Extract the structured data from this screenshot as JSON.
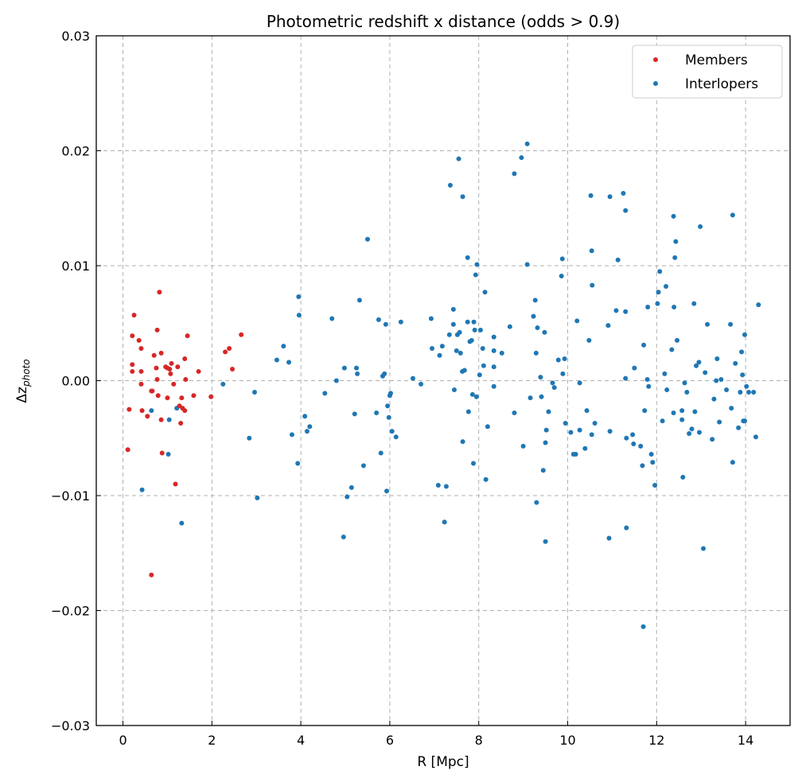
{
  "chart_data": {
    "type": "scatter",
    "title": "Photometric redshift x distance (odds > 0.9)",
    "xlabel": "R [Mpc]",
    "ylabel_main": "Δz",
    "ylabel_sub": "photo",
    "xlim": [
      -0.6,
      15.0
    ],
    "ylim": [
      -0.03,
      0.03
    ],
    "y_unit_scale": 0.001,
    "xticks": [
      0,
      2,
      4,
      6,
      8,
      10,
      12,
      14
    ],
    "xtick_labels": [
      "0",
      "2",
      "4",
      "6",
      "8",
      "10",
      "12",
      "14"
    ],
    "yticks": [
      -0.03,
      -0.02,
      -0.01,
      0,
      0.01,
      0.02,
      0.03
    ],
    "ytick_labels": [
      "−0.03",
      "−0.02",
      "−0.01",
      "0.00",
      "0.01",
      "0.02",
      "0.03"
    ],
    "grid": true,
    "legend_position": "top-right",
    "series": [
      {
        "name": "Members",
        "color": "#d62728",
        "points_y_in_1e-3": [
          [
            0.25,
            5.7
          ],
          [
            0.21,
            3.9
          ],
          [
            0.14,
            -2.5
          ],
          [
            0.11,
            -6.0
          ],
          [
            0.21,
            1.4
          ],
          [
            0.21,
            0.8
          ],
          [
            0.36,
            3.5
          ],
          [
            0.41,
            2.8
          ],
          [
            0.41,
            0.8
          ],
          [
            0.41,
            -0.3
          ],
          [
            0.43,
            -2.6
          ],
          [
            0.55,
            -3.1
          ],
          [
            0.64,
            -0.9
          ],
          [
            0.66,
            -0.9
          ],
          [
            0.7,
            2.2
          ],
          [
            0.75,
            1.1
          ],
          [
            0.77,
            0.1
          ],
          [
            0.77,
            4.4
          ],
          [
            0.82,
            7.7
          ],
          [
            0.86,
            2.4
          ],
          [
            0.88,
            -6.3
          ],
          [
            0.86,
            -3.4
          ],
          [
            0.96,
            1.2
          ],
          [
            1.0,
            -1.5
          ],
          [
            1.05,
            1.0
          ],
          [
            1.07,
            0.6
          ],
          [
            1.09,
            1.5
          ],
          [
            1.14,
            -0.3
          ],
          [
            1.18,
            -9.0
          ],
          [
            1.23,
            1.2
          ],
          [
            1.27,
            -2.2
          ],
          [
            1.3,
            -3.7
          ],
          [
            1.32,
            -1.5
          ],
          [
            1.34,
            -2.4
          ],
          [
            1.39,
            -2.6
          ],
          [
            1.41,
            0.1
          ],
          [
            1.39,
            1.9
          ],
          [
            1.45,
            3.9
          ],
          [
            1.59,
            -1.3
          ],
          [
            1.7,
            0.8
          ],
          [
            1.98,
            -1.4
          ],
          [
            2.3,
            2.5
          ],
          [
            2.39,
            2.8
          ],
          [
            2.46,
            1.0
          ],
          [
            2.66,
            4.0
          ],
          [
            0.64,
            -16.9
          ],
          [
            0.79,
            -1.3
          ],
          [
            1.0,
            1.1
          ]
        ]
      },
      {
        "name": "Interlopers",
        "color": "#1f77b4",
        "points_y_in_1e-3": [
          [
            0.64,
            -2.6
          ],
          [
            0.43,
            -9.5
          ],
          [
            1.02,
            -6.4
          ],
          [
            1.04,
            -3.4
          ],
          [
            1.21,
            -2.4
          ],
          [
            1.32,
            -12.4
          ],
          [
            2.25,
            -0.3
          ],
          [
            2.96,
            -1.0
          ],
          [
            2.84,
            -5.0
          ],
          [
            3.02,
            -10.2
          ],
          [
            3.46,
            1.8
          ],
          [
            3.61,
            3.0
          ],
          [
            3.73,
            1.6
          ],
          [
            3.8,
            -4.7
          ],
          [
            3.95,
            7.3
          ],
          [
            3.96,
            5.7
          ],
          [
            3.93,
            -7.2
          ],
          [
            4.09,
            -3.1
          ],
          [
            4.14,
            -4.4
          ],
          [
            4.2,
            -4.0
          ],
          [
            4.54,
            -1.1
          ],
          [
            4.7,
            5.4
          ],
          [
            4.8,
            0.0
          ],
          [
            4.98,
            1.1
          ],
          [
            4.96,
            -13.6
          ],
          [
            5.04,
            -10.1
          ],
          [
            5.14,
            -9.3
          ],
          [
            5.21,
            -2.9
          ],
          [
            5.25,
            1.1
          ],
          [
            5.27,
            0.6
          ],
          [
            5.32,
            7.0
          ],
          [
            5.41,
            -7.4
          ],
          [
            5.5,
            12.3
          ],
          [
            5.7,
            -2.8
          ],
          [
            5.75,
            5.3
          ],
          [
            5.8,
            -6.3
          ],
          [
            5.84,
            0.4
          ],
          [
            5.88,
            0.6
          ],
          [
            5.91,
            4.9
          ],
          [
            5.93,
            -9.6
          ],
          [
            5.95,
            -2.2
          ],
          [
            5.98,
            -3.2
          ],
          [
            6.0,
            -1.3
          ],
          [
            6.02,
            -1.1
          ],
          [
            6.05,
            -4.4
          ],
          [
            6.14,
            -4.9
          ],
          [
            6.25,
            5.1
          ],
          [
            6.52,
            0.2
          ],
          [
            6.7,
            -0.3
          ],
          [
            6.93,
            5.4
          ],
          [
            6.95,
            2.8
          ],
          [
            7.12,
            2.2
          ],
          [
            7.09,
            -9.1
          ],
          [
            7.18,
            3.0
          ],
          [
            7.23,
            -12.3
          ],
          [
            7.27,
            -9.2
          ],
          [
            7.36,
            17.0
          ],
          [
            7.34,
            4.0
          ],
          [
            7.43,
            6.2
          ],
          [
            7.43,
            4.9
          ],
          [
            7.45,
            -0.8
          ],
          [
            7.5,
            2.6
          ],
          [
            7.52,
            4.0
          ],
          [
            7.55,
            19.3
          ],
          [
            7.57,
            4.2
          ],
          [
            7.59,
            2.4
          ],
          [
            7.63,
            0.8
          ],
          [
            7.64,
            -5.3
          ],
          [
            7.64,
            16.0
          ],
          [
            7.68,
            0.9
          ],
          [
            7.75,
            10.7
          ],
          [
            7.77,
            -2.7
          ],
          [
            7.75,
            5.1
          ],
          [
            7.8,
            3.4
          ],
          [
            7.84,
            3.5
          ],
          [
            7.86,
            -1.2
          ],
          [
            7.88,
            -7.2
          ],
          [
            7.89,
            5.1
          ],
          [
            7.91,
            4.4
          ],
          [
            7.93,
            9.2
          ],
          [
            7.95,
            -1.4
          ],
          [
            7.96,
            10.1
          ],
          [
            8.02,
            0.5
          ],
          [
            8.04,
            4.4
          ],
          [
            8.09,
            2.8
          ],
          [
            8.11,
            1.3
          ],
          [
            8.14,
            7.7
          ],
          [
            8.16,
            -8.6
          ],
          [
            8.2,
            -4.0
          ],
          [
            8.34,
            2.6
          ],
          [
            8.34,
            3.8
          ],
          [
            8.34,
            1.2
          ],
          [
            8.34,
            -0.5
          ],
          [
            8.52,
            2.4
          ],
          [
            8.7,
            4.7
          ],
          [
            8.8,
            -2.8
          ],
          [
            8.8,
            18.0
          ],
          [
            8.96,
            19.4
          ],
          [
            9.0,
            -5.7
          ],
          [
            9.09,
            10.1
          ],
          [
            9.09,
            20.6
          ],
          [
            9.16,
            -1.5
          ],
          [
            9.23,
            5.6
          ],
          [
            9.27,
            7.0
          ],
          [
            9.29,
            2.4
          ],
          [
            9.32,
            4.6
          ],
          [
            9.3,
            -10.6
          ],
          [
            9.39,
            0.3
          ],
          [
            9.41,
            -1.4
          ],
          [
            9.45,
            -7.8
          ],
          [
            9.48,
            4.2
          ],
          [
            9.52,
            -4.3
          ],
          [
            9.5,
            -14.0
          ],
          [
            9.5,
            -5.4
          ],
          [
            9.57,
            -2.7
          ],
          [
            9.66,
            -0.2
          ],
          [
            9.7,
            -0.6
          ],
          [
            9.79,
            1.8
          ],
          [
            9.86,
            9.1
          ],
          [
            9.88,
            10.6
          ],
          [
            9.89,
            0.6
          ],
          [
            9.93,
            1.9
          ],
          [
            9.95,
            -3.7
          ],
          [
            10.07,
            -4.5
          ],
          [
            10.13,
            -6.4
          ],
          [
            10.18,
            -6.4
          ],
          [
            10.21,
            5.2
          ],
          [
            10.27,
            -0.2
          ],
          [
            10.27,
            -4.3
          ],
          [
            10.39,
            -5.9
          ],
          [
            10.43,
            -2.6
          ],
          [
            10.48,
            3.5
          ],
          [
            10.52,
            16.1
          ],
          [
            10.54,
            11.3
          ],
          [
            10.54,
            -4.7
          ],
          [
            10.55,
            8.3
          ],
          [
            10.61,
            -3.7
          ],
          [
            10.91,
            4.8
          ],
          [
            10.93,
            -13.7
          ],
          [
            10.95,
            16.0
          ],
          [
            10.95,
            -4.4
          ],
          [
            11.09,
            6.1
          ],
          [
            11.13,
            10.5
          ],
          [
            11.25,
            16.3
          ],
          [
            11.3,
            14.8
          ],
          [
            11.3,
            0.2
          ],
          [
            11.3,
            6.0
          ],
          [
            11.32,
            -5.0
          ],
          [
            11.32,
            -12.8
          ],
          [
            11.46,
            -4.7
          ],
          [
            11.48,
            -5.5
          ],
          [
            11.5,
            1.1
          ],
          [
            11.64,
            -5.7
          ],
          [
            11.68,
            -7.4
          ],
          [
            11.7,
            -21.4
          ],
          [
            11.71,
            3.1
          ],
          [
            11.73,
            -2.6
          ],
          [
            11.79,
            0.1
          ],
          [
            11.8,
            6.4
          ],
          [
            11.82,
            -0.5
          ],
          [
            11.88,
            -6.4
          ],
          [
            11.91,
            -7.1
          ],
          [
            11.96,
            -9.1
          ],
          [
            12.02,
            6.7
          ],
          [
            12.04,
            7.7
          ],
          [
            12.07,
            9.5
          ],
          [
            12.13,
            -3.5
          ],
          [
            12.18,
            0.6
          ],
          [
            12.21,
            8.2
          ],
          [
            12.23,
            -0.8
          ],
          [
            12.34,
            2.7
          ],
          [
            12.38,
            -2.8
          ],
          [
            12.38,
            14.3
          ],
          [
            12.39,
            6.4
          ],
          [
            12.41,
            10.7
          ],
          [
            12.43,
            12.1
          ],
          [
            12.46,
            3.5
          ],
          [
            12.57,
            -2.6
          ],
          [
            12.57,
            -3.4
          ],
          [
            12.59,
            -8.4
          ],
          [
            12.63,
            -0.2
          ],
          [
            12.68,
            -1.0
          ],
          [
            12.73,
            -4.6
          ],
          [
            12.79,
            -4.2
          ],
          [
            12.84,
            6.7
          ],
          [
            12.86,
            -2.7
          ],
          [
            12.89,
            1.3
          ],
          [
            12.95,
            1.6
          ],
          [
            12.96,
            -4.5
          ],
          [
            12.98,
            13.4
          ],
          [
            13.05,
            -14.6
          ],
          [
            13.09,
            0.7
          ],
          [
            13.14,
            4.9
          ],
          [
            13.25,
            -5.1
          ],
          [
            13.29,
            -1.6
          ],
          [
            13.34,
            0.0
          ],
          [
            13.36,
            1.9
          ],
          [
            13.41,
            -3.6
          ],
          [
            13.45,
            0.1
          ],
          [
            13.57,
            -0.8
          ],
          [
            13.66,
            4.9
          ],
          [
            13.68,
            -2.4
          ],
          [
            13.71,
            14.4
          ],
          [
            13.71,
            -7.1
          ],
          [
            13.77,
            1.5
          ],
          [
            13.84,
            -4.1
          ],
          [
            13.88,
            -1.0
          ],
          [
            13.91,
            2.5
          ],
          [
            13.93,
            0.5
          ],
          [
            13.95,
            -3.5
          ],
          [
            13.98,
            -3.5
          ],
          [
            13.98,
            4.0
          ],
          [
            14.02,
            -0.5
          ],
          [
            14.07,
            -1.0
          ],
          [
            14.18,
            -1.0
          ],
          [
            14.23,
            -4.9
          ],
          [
            14.29,
            6.6
          ]
        ]
      }
    ]
  }
}
